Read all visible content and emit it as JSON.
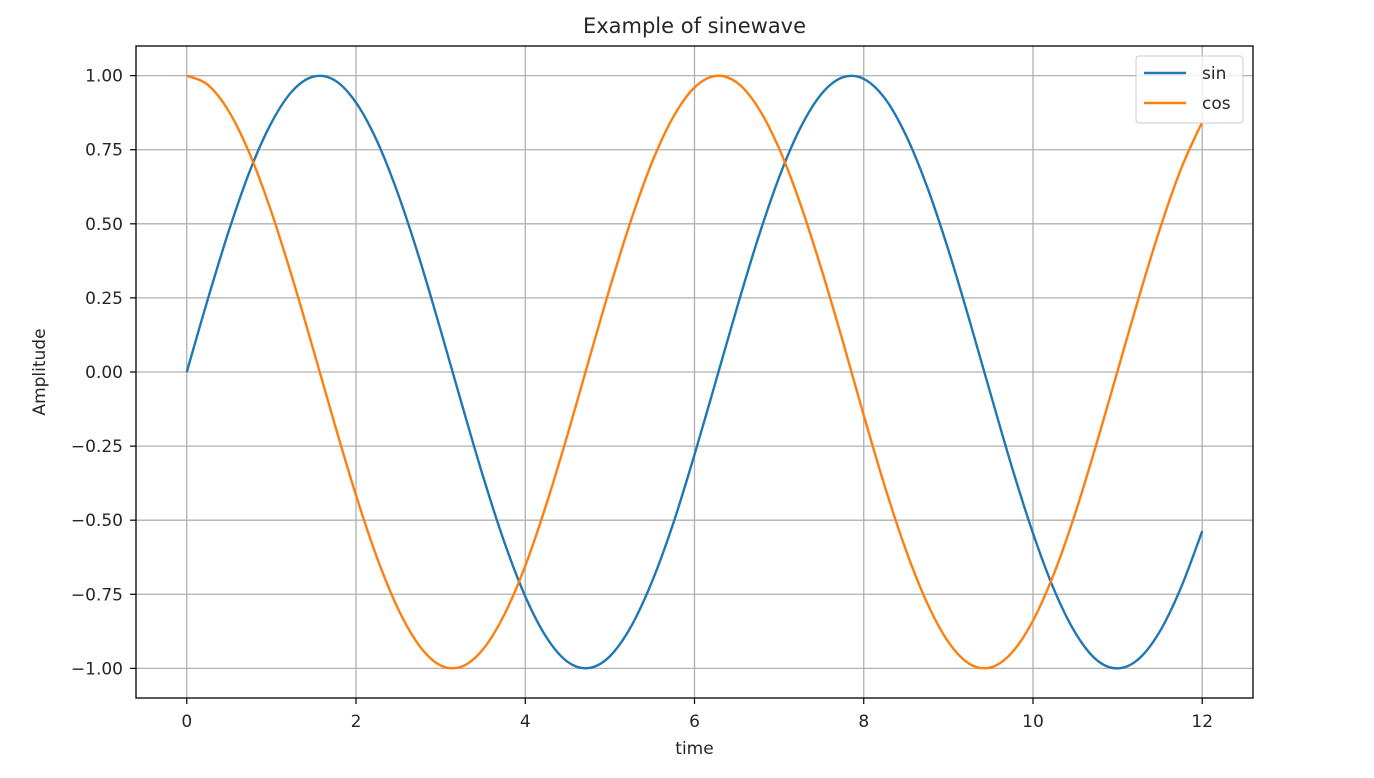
{
  "chart_data": {
    "type": "line",
    "title": "Example of sinewave",
    "xlabel": "time",
    "ylabel": "Amplitude",
    "xlim": [
      -0.6,
      12.6
    ],
    "ylim": [
      -1.1,
      1.1
    ],
    "xticks": [
      0,
      2,
      4,
      6,
      8,
      10,
      12
    ],
    "xtick_labels": [
      "0",
      "2",
      "4",
      "6",
      "8",
      "10",
      "12"
    ],
    "yticks": [
      1.0,
      0.75,
      0.5,
      0.25,
      0.0,
      -0.25,
      -0.5,
      -0.75,
      -1.0
    ],
    "ytick_labels": [
      "1.00",
      "0.75",
      "0.50",
      "0.25",
      "0.00",
      "−0.25",
      "−0.50",
      "−0.75",
      "−1.00"
    ],
    "grid": true,
    "legend_position": "top-right",
    "x": [
      0,
      0.25,
      0.5,
      0.75,
      1,
      1.25,
      1.5,
      1.75,
      2,
      2.25,
      2.5,
      2.75,
      3,
      3.25,
      3.5,
      3.75,
      4,
      4.25,
      4.5,
      4.75,
      5,
      5.25,
      5.5,
      5.75,
      6,
      6.25,
      6.5,
      6.75,
      7,
      7.25,
      7.5,
      7.75,
      8,
      8.25,
      8.5,
      8.75,
      9,
      9.25,
      9.5,
      9.75,
      10,
      10.25,
      10.5,
      10.75,
      11,
      11.25,
      11.5,
      11.75,
      12
    ],
    "series": [
      {
        "name": "sin",
        "color": "#1f77b4",
        "values": [
          0.0,
          0.247,
          0.479,
          0.682,
          0.841,
          0.949,
          0.997,
          0.984,
          0.909,
          0.778,
          0.598,
          0.382,
          0.141,
          -0.108,
          -0.351,
          -0.572,
          -0.757,
          -0.895,
          -0.978,
          -0.999,
          -0.959,
          -0.859,
          -0.706,
          -0.51,
          -0.279,
          -0.033,
          0.215,
          0.45,
          0.657,
          0.823,
          0.938,
          0.994,
          0.989,
          0.923,
          0.798,
          0.624,
          0.412,
          0.174,
          -0.075,
          -0.32,
          -0.544,
          -0.735,
          -0.88,
          -0.971,
          -1.0,
          -0.968,
          -0.875,
          -0.727,
          -0.537
        ]
      },
      {
        "name": "cos",
        "color": "#ff7f0e",
        "values": [
          1.0,
          0.969,
          0.878,
          0.732,
          0.54,
          0.315,
          0.071,
          -0.178,
          -0.416,
          -0.628,
          -0.801,
          -0.924,
          -0.99,
          -0.994,
          -0.936,
          -0.82,
          -0.654,
          -0.446,
          -0.211,
          0.038,
          0.284,
          0.512,
          0.709,
          0.861,
          0.96,
          0.999,
          0.977,
          0.893,
          0.754,
          0.568,
          0.347,
          0.106,
          -0.146,
          -0.387,
          -0.602,
          -0.78,
          -0.911,
          -0.985,
          -0.997,
          -0.947,
          -0.839,
          -0.679,
          -0.476,
          -0.243,
          0.004,
          0.251,
          0.483,
          0.686,
          0.844
        ]
      }
    ]
  }
}
